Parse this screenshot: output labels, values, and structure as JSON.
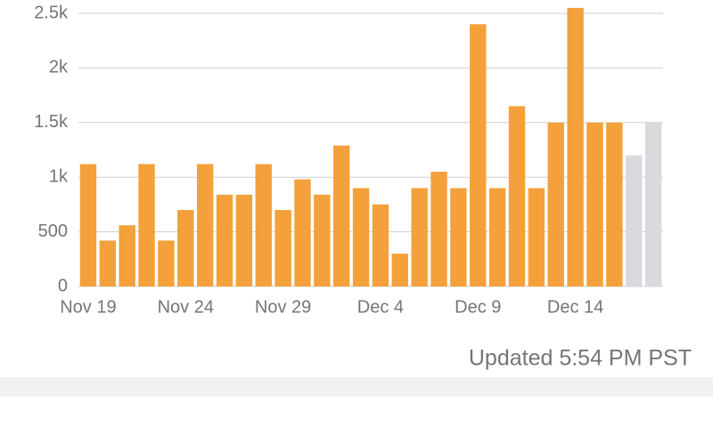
{
  "chart_data": {
    "type": "bar",
    "categories": [
      "Nov 19",
      null,
      null,
      null,
      null,
      "Nov 24",
      null,
      null,
      null,
      null,
      "Nov 29",
      null,
      null,
      null,
      null,
      "Dec 4",
      null,
      null,
      null,
      null,
      "Dec 9",
      null,
      null,
      null,
      null,
      "Dec 14",
      null,
      null,
      null,
      null
    ],
    "values": [
      1120,
      420,
      560,
      1120,
      420,
      700,
      1120,
      840,
      840,
      1120,
      700,
      980,
      840,
      1290,
      900,
      750,
      300,
      900,
      1050,
      900,
      2400,
      900,
      1650,
      900,
      1500,
      2550,
      1500,
      1500,
      1200,
      1500
    ],
    "colors": [
      "#f4a03b",
      "#f4a03b",
      "#f4a03b",
      "#f4a03b",
      "#f4a03b",
      "#f4a03b",
      "#f4a03b",
      "#f4a03b",
      "#f4a03b",
      "#f4a03b",
      "#f4a03b",
      "#f4a03b",
      "#f4a03b",
      "#f4a03b",
      "#f4a03b",
      "#f4a03b",
      "#f4a03b",
      "#f4a03b",
      "#f4a03b",
      "#f4a03b",
      "#f4a03b",
      "#f4a03b",
      "#f4a03b",
      "#f4a03b",
      "#f4a03b",
      "#f4a03b",
      "#f4a03b",
      "#f4a03b",
      "#d9d9de",
      "#d9d9de"
    ],
    "ylim": [
      0,
      2500
    ],
    "yticks": [
      0,
      500,
      {
        "value": 1000,
        "label": "1k"
      },
      {
        "value": 1500,
        "label": "1.5k"
      },
      {
        "value": 2000,
        "label": "2k"
      },
      {
        "value": 2500,
        "label": "2.5k"
      }
    ],
    "grid": true
  },
  "footer": {
    "updated": "Updated 5:54 PM PST"
  }
}
